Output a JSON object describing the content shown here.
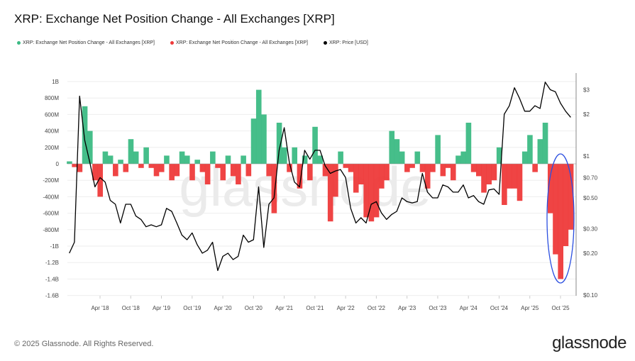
{
  "chart_data": {
    "type": "bar+line",
    "title": "XRP: Exchange Net Position Change - All Exchanges [XRP]",
    "legend": [
      {
        "label": "XRP: Exchange Net Position Change - All Exchanges [XRP]",
        "color": "#3cba84"
      },
      {
        "label": "XRP: Exchange Net Position Change - All Exchanges [XRP]",
        "color": "#ee3a3a"
      },
      {
        "label": "XRP: Price [USD]",
        "color": "#000000"
      }
    ],
    "legend_placement": "top-left",
    "x_ticks": [
      "Apr '18",
      "Oct '18",
      "Apr '19",
      "Oct '19",
      "Apr '20",
      "Oct '20",
      "Apr '21",
      "Oct '21",
      "Apr '22",
      "Oct '22",
      "Apr '23",
      "Oct '23",
      "Apr '24",
      "Oct '24",
      "Apr '25",
      "Oct '25"
    ],
    "y_left_ticks": [
      "1B",
      "800M",
      "600M",
      "400M",
      "200M",
      "0",
      "-200M",
      "-400M",
      "-600M",
      "-800M",
      "-1B",
      "-1.2B",
      "-1.4B",
      "-1.6B"
    ],
    "y_left_range_millions": [
      -1600,
      1000
    ],
    "y_right_ticks": [
      "$3",
      "$2",
      "$1",
      "$0.70",
      "$0.50",
      "$0.30",
      "$0.20",
      "$0.10"
    ],
    "y_right_scale": "log",
    "y_right_range": [
      0.1,
      3.6
    ],
    "grid": "horizontal",
    "net_position_start_month": "2017-10",
    "net_position_millions": [
      30,
      -40,
      -100,
      700,
      400,
      -200,
      -400,
      150,
      100,
      -150,
      50,
      -100,
      300,
      150,
      -50,
      200,
      -50,
      -150,
      -100,
      100,
      -200,
      -150,
      150,
      100,
      -200,
      50,
      -100,
      -250,
      150,
      -50,
      -200,
      100,
      -150,
      -250,
      100,
      -150,
      550,
      900,
      600,
      -150,
      -600,
      500,
      200,
      -100,
      200,
      -300,
      100,
      -200,
      450,
      100,
      -150,
      -700,
      -400,
      150,
      -50,
      -100,
      -350,
      -250,
      -650,
      -700,
      -650,
      -300,
      -200,
      400,
      300,
      150,
      -100,
      -50,
      150,
      -100,
      -300,
      -100,
      350,
      -150,
      -50,
      -200,
      100,
      150,
      500,
      -100,
      -150,
      -350,
      -250,
      -200,
      200,
      -500,
      -300,
      -300,
      -450,
      150,
      350,
      -100,
      300,
      500,
      -600,
      -1100,
      -1400,
      -1000,
      -800
    ],
    "price_start_month": "2017-10",
    "price_usd": [
      0.2,
      0.24,
      2.7,
      1.3,
      0.9,
      0.6,
      0.7,
      0.65,
      0.48,
      0.45,
      0.33,
      0.45,
      0.45,
      0.37,
      0.35,
      0.31,
      0.32,
      0.31,
      0.32,
      0.42,
      0.4,
      0.33,
      0.27,
      0.25,
      0.28,
      0.23,
      0.2,
      0.21,
      0.24,
      0.15,
      0.19,
      0.2,
      0.18,
      0.19,
      0.27,
      0.24,
      0.25,
      0.6,
      0.22,
      0.45,
      0.5,
      1.1,
      1.6,
      0.9,
      0.65,
      0.6,
      1.1,
      0.95,
      1.1,
      1.1,
      0.85,
      0.75,
      0.78,
      0.8,
      0.7,
      0.42,
      0.33,
      0.36,
      0.33,
      0.45,
      0.47,
      0.39,
      0.35,
      0.38,
      0.4,
      0.5,
      0.47,
      0.46,
      0.47,
      0.75,
      0.55,
      0.5,
      0.5,
      0.62,
      0.6,
      0.55,
      0.55,
      0.62,
      0.5,
      0.52,
      0.47,
      0.45,
      0.57,
      0.58,
      0.53,
      2.0,
      2.3,
      3.1,
      2.6,
      2.1,
      2.1,
      2.3,
      2.2,
      3.4,
      3.0,
      2.9,
      2.4,
      2.1,
      1.9
    ],
    "annotation": {
      "type": "ellipse",
      "color": "#2b4fe0",
      "months": [
        "2025-08",
        "2025-12"
      ]
    }
  },
  "footer": {
    "copyright": "© 2025 Glassnode. All Rights Reserved.",
    "brand": "glassnode",
    "watermark": "glassnode"
  }
}
